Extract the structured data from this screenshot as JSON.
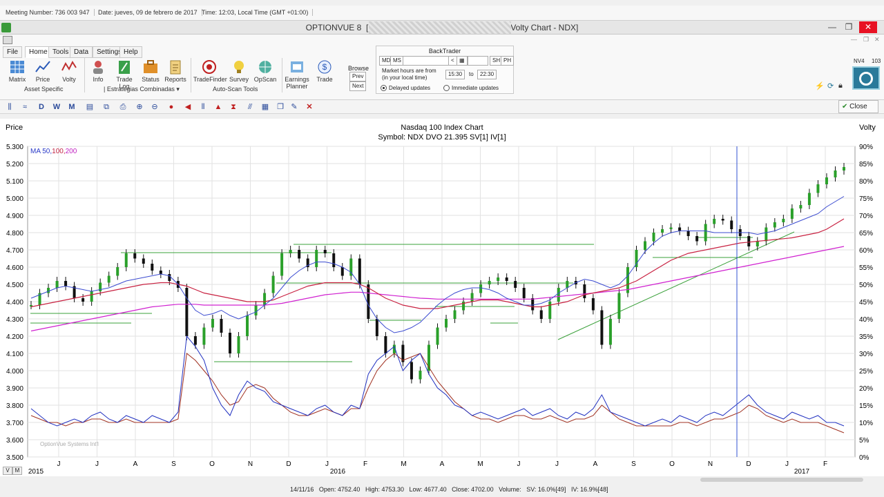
{
  "infobar": {
    "meeting": "Meeting Number: 736 003 947",
    "date": "Date: jueves, 09 de febrero de 2017",
    "time": "Time: 12:03, Local Time (GMT +01:00)"
  },
  "window": {
    "title_left": "OPTIONVUE 8",
    "title_bracket": "[",
    "title_right": "Volty Chart - NDX]",
    "minimize": "—",
    "restore": "❐",
    "close": "✕"
  },
  "menu": {
    "tabs": [
      "File",
      "Home",
      "Tools",
      "Data",
      "Settings",
      "Help"
    ],
    "active": "Home"
  },
  "ribbon": {
    "buttons": [
      "Matrix",
      "Price",
      "Volty",
      "Info",
      "Trade Log",
      "Status",
      "Reports",
      "TradeFinder",
      "Survey",
      "OpScan",
      "Earnings Planner",
      "Trade"
    ],
    "groups": [
      "Asset Specific",
      "| Estrategias Combinadas ▾",
      "Auto-Scan Tools"
    ],
    "browse": {
      "label": "Browse",
      "prev": "Prev",
      "next": "Next"
    }
  },
  "backtrader": {
    "title": "BackTrader",
    "md": "MD",
    "ms": "MS",
    "sh": "SH",
    "ph": "PH",
    "hours_label_1": "Market hours are from",
    "hours_label_2": "(in your local time)",
    "from": "15:30",
    "to_label": "to",
    "to": "22:30",
    "delayed": "Delayed updates",
    "immediate": "Immediate updates"
  },
  "status_right": {
    "nv": "NV4",
    "num": "103"
  },
  "chart_toolbar": {
    "close_label": "Close"
  },
  "chart_data": {
    "type": "line",
    "title": "Nasdaq 100 Index Chart",
    "subtitle": "Symbol: NDX  DVO 21.395  SV[1]  IV[1]",
    "ylabel_left": "Price",
    "ylabel_right": "Volty",
    "legend": {
      "ma_prefix": "MA 50,",
      "ma_100": "100,",
      "ma_200": "200"
    },
    "watermark": "OptionVue Systems Int'l",
    "ylim_left": [
      3500,
      5300
    ],
    "ylim_right": [
      0,
      90
    ],
    "left_ticks": [
      "5.300",
      "5.200",
      "5.100",
      "5.000",
      "4.900",
      "4.800",
      "4.700",
      "4.600",
      "4.500",
      "4.400",
      "4.300",
      "4.200",
      "4.100",
      "4.000",
      "3.900",
      "3.800",
      "3.700",
      "3.600",
      "3.500"
    ],
    "right_ticks": [
      "90%",
      "85%",
      "80%",
      "75%",
      "70%",
      "65%",
      "60%",
      "55%",
      "50%",
      "45%",
      "40%",
      "35%",
      "30%",
      "25%",
      "20%",
      "15%",
      "10%",
      "5%",
      "0%"
    ],
    "x_months": [
      "J",
      "J",
      "A",
      "S",
      "O",
      "N",
      "D",
      "J",
      "F",
      "M",
      "A",
      "M",
      "J",
      "J",
      "A",
      "S",
      "O",
      "N",
      "D",
      "J",
      "F"
    ],
    "year_labels": [
      "2015",
      "2016",
      "2017"
    ],
    "price": [
      4380,
      4450,
      4480,
      4520,
      4490,
      4420,
      4400,
      4460,
      4510,
      4550,
      4600,
      4680,
      4650,
      4620,
      4580,
      4560,
      4520,
      4480,
      4200,
      4150,
      4250,
      4300,
      4220,
      4100,
      4200,
      4320,
      4380,
      4450,
      4550,
      4680,
      4700,
      4650,
      4600,
      4700,
      4680,
      4600,
      4550,
      4650,
      4500,
      4300,
      4200,
      4100,
      4150,
      4050,
      3950,
      4000,
      4150,
      4250,
      4300,
      4350,
      4400,
      4450,
      4500,
      4520,
      4540,
      4520,
      4480,
      4420,
      4350,
      4300,
      4400,
      4480,
      4520,
      4500,
      4420,
      4350,
      4150,
      4300,
      4450,
      4600,
      4700,
      4750,
      4800,
      4820,
      4830,
      4810,
      4780,
      4750,
      4850,
      4880,
      4870,
      4820,
      4780,
      4720,
      4750,
      4830,
      4860,
      4880,
      4940,
      4960,
      5030,
      5080,
      5120,
      5160,
      5180
    ],
    "ma50": [
      4420,
      4440,
      4460,
      4480,
      4490,
      4480,
      4470,
      4460,
      4470,
      4480,
      4500,
      4520,
      4530,
      4540,
      4550,
      4560,
      4550,
      4500,
      4420,
      4350,
      4320,
      4330,
      4350,
      4320,
      4300,
      4320,
      4340,
      4380,
      4420,
      4480,
      4540,
      4580,
      4610,
      4630,
      4630,
      4620,
      4600,
      4570,
      4500,
      4380,
      4300,
      4250,
      4220,
      4230,
      4250,
      4280,
      4330,
      4380,
      4420,
      4450,
      4470,
      4480,
      4480,
      4470,
      4450,
      4420,
      4400,
      4380,
      4380,
      4390,
      4410,
      4450,
      4480,
      4510,
      4530,
      4520,
      4500,
      4480,
      4500,
      4550,
      4620,
      4690,
      4740,
      4780,
      4800,
      4810,
      4810,
      4810,
      4810,
      4800,
      4800,
      4800,
      4800,
      4800,
      4790,
      4800,
      4810,
      4830,
      4850,
      4870,
      4890,
      4910,
      4950,
      4980,
      5010
    ],
    "ma100": [
      4370,
      4380,
      4390,
      4400,
      4410,
      4420,
      4430,
      4440,
      4450,
      4460,
      4470,
      4480,
      4490,
      4500,
      4505,
      4510,
      4510,
      4500,
      4490,
      4470,
      4450,
      4440,
      4430,
      4420,
      4410,
      4400,
      4400,
      4400,
      4410,
      4430,
      4450,
      4470,
      4490,
      4500,
      4510,
      4510,
      4510,
      4510,
      4500,
      4480,
      4450,
      4420,
      4400,
      4380,
      4370,
      4360,
      4360,
      4360,
      4370,
      4380,
      4390,
      4400,
      4410,
      4410,
      4410,
      4400,
      4390,
      4380,
      4370,
      4370,
      4380,
      4390,
      4400,
      4420,
      4440,
      4450,
      4460,
      4470,
      4480,
      4500,
      4520,
      4550,
      4580,
      4610,
      4640,
      4660,
      4680,
      4690,
      4700,
      4710,
      4720,
      4730,
      4740,
      4745,
      4750,
      4755,
      4760,
      4765,
      4770,
      4780,
      4790,
      4800,
      4820,
      4850,
      4880
    ],
    "ma200": [
      4230,
      4240,
      4250,
      4260,
      4270,
      4280,
      4290,
      4300,
      4310,
      4320,
      4330,
      4340,
      4350,
      4360,
      4370,
      4375,
      4380,
      4385,
      4385,
      4385,
      4380,
      4380,
      4380,
      4380,
      4380,
      4380,
      4380,
      4380,
      4385,
      4390,
      4400,
      4410,
      4420,
      4430,
      4440,
      4445,
      4450,
      4455,
      4455,
      4450,
      4445,
      4440,
      4435,
      4430,
      4425,
      4420,
      4418,
      4415,
      4415,
      4415,
      4415,
      4415,
      4415,
      4415,
      4415,
      4415,
      4415,
      4415,
      4415,
      4420,
      4425,
      4430,
      4435,
      4440,
      4445,
      4450,
      4455,
      4460,
      4465,
      4470,
      4480,
      4490,
      4500,
      4510,
      4520,
      4530,
      4540,
      4550,
      4560,
      4570,
      4580,
      4590,
      4600,
      4610,
      4620,
      4630,
      4640,
      4650,
      4660,
      4670,
      4680,
      4690,
      4700,
      4710,
      4720
    ],
    "iv": [
      14,
      12,
      10,
      9,
      10,
      11,
      10,
      12,
      13,
      11,
      10,
      12,
      11,
      10,
      12,
      11,
      10,
      13,
      35,
      32,
      28,
      20,
      15,
      12,
      18,
      22,
      20,
      19,
      16,
      15,
      14,
      13,
      12,
      14,
      15,
      13,
      12,
      15,
      14,
      24,
      28,
      30,
      32,
      25,
      28,
      30,
      24,
      20,
      18,
      15,
      14,
      12,
      13,
      12,
      11,
      12,
      13,
      14,
      12,
      13,
      14,
      12,
      11,
      13,
      12,
      14,
      18,
      13,
      12,
      11,
      10,
      9,
      10,
      11,
      10,
      12,
      11,
      10,
      12,
      13,
      12,
      14,
      16,
      18,
      15,
      13,
      12,
      11,
      13,
      12,
      11,
      12,
      10,
      10,
      9
    ],
    "sv": [
      12,
      11,
      10,
      10,
      9,
      10,
      10,
      11,
      11,
      10,
      10,
      11,
      10,
      10,
      10,
      10,
      10,
      11,
      30,
      28,
      25,
      22,
      18,
      15,
      16,
      20,
      21,
      20,
      17,
      15,
      13,
      12,
      12,
      13,
      14,
      13,
      12,
      14,
      14,
      20,
      25,
      28,
      30,
      28,
      29,
      30,
      26,
      22,
      19,
      16,
      14,
      12,
      11,
      11,
      10,
      11,
      12,
      12,
      11,
      11,
      12,
      11,
      10,
      11,
      11,
      12,
      15,
      13,
      11,
      10,
      9,
      9,
      9,
      9,
      9,
      10,
      10,
      9,
      10,
      11,
      11,
      12,
      13,
      15,
      14,
      12,
      11,
      10,
      11,
      10,
      10,
      10,
      9,
      8,
      7
    ]
  },
  "statusbar": {
    "date": "14/11/16",
    "open": "Open: 4752.40",
    "high": "High: 4753.30",
    "low": "Low: 4677.40",
    "close": "Close: 4702.00",
    "volume": "Volume:",
    "sv": "SV: 16.0%[49]",
    "iv": "IV: 16.9%[48]",
    "v_btn": "V",
    "m_btn": "M"
  }
}
